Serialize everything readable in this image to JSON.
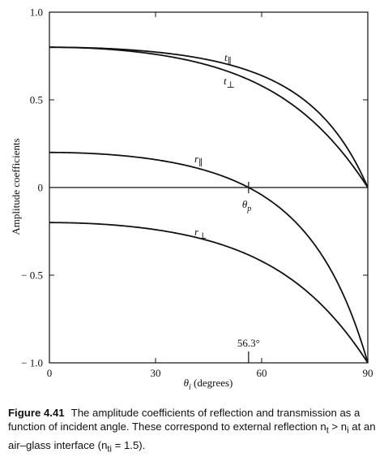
{
  "chart_data": {
    "type": "line",
    "xlabel": "θ",
    "xlabel_sub": "i",
    "xlabel_unit": " (degrees)",
    "ylabel": "Amplitude coefficients",
    "xlim": [
      0,
      90
    ],
    "ylim": [
      -1.0,
      1.0
    ],
    "xticks": [
      {
        "value": 0,
        "label": "0"
      },
      {
        "value": 30,
        "label": "30"
      },
      {
        "value": 60,
        "label": "60"
      },
      {
        "value": 90,
        "label": "90"
      }
    ],
    "yticks": [
      {
        "value": 1.0,
        "label": "1.0"
      },
      {
        "value": 0.5,
        "label": "0.5"
      },
      {
        "value": 0,
        "label": "0"
      },
      {
        "value": -0.5,
        "label": "− 0.5"
      },
      {
        "value": -1.0,
        "label": "− 1.0"
      }
    ],
    "grid": false,
    "n_incident": 1.0,
    "n_transmitted": 1.5,
    "series": [
      {
        "name": "t∥",
        "base": "t",
        "sub": "∥",
        "x": [
          0,
          15,
          30,
          45,
          56.3,
          60,
          70,
          80,
          85,
          90
        ],
        "values": [
          0.8,
          0.795,
          0.781,
          0.755,
          0.727,
          0.714,
          0.669,
          0.56,
          0.398,
          0.0
        ]
      },
      {
        "name": "t⊥",
        "base": "t",
        "sub": "⊥",
        "x": [
          0,
          15,
          30,
          45,
          56.3,
          60,
          70,
          80,
          85,
          90
        ],
        "values": [
          0.8,
          0.793,
          0.771,
          0.721,
          0.662,
          0.635,
          0.537,
          0.376,
          0.232,
          0.0
        ]
      },
      {
        "name": "r∥",
        "base": "r",
        "sub": "∥",
        "x": [
          0,
          15,
          30,
          45,
          56.3,
          60,
          70,
          80,
          85,
          90
        ],
        "values": [
          0.2,
          0.192,
          0.159,
          0.092,
          0.0,
          -0.042,
          -0.196,
          -0.441,
          -0.64,
          -1.0
        ]
      },
      {
        "name": "r⊥",
        "base": "r",
        "sub": "⊥",
        "x": [
          0,
          15,
          30,
          45,
          56.3,
          60,
          70,
          80,
          85,
          90
        ],
        "values": [
          -0.2,
          -0.207,
          -0.229,
          -0.279,
          -0.338,
          -0.365,
          -0.463,
          -0.624,
          -0.768,
          -1.0
        ]
      }
    ],
    "annotations": [
      {
        "kind": "brewster",
        "x": 56.3,
        "y": 0,
        "base": "θ",
        "sub": "p"
      },
      {
        "kind": "degree-marker",
        "x": 56.3,
        "y": -1.0,
        "label": "56.3°"
      }
    ]
  },
  "caption": {
    "figure_number": "Figure 4.41",
    "text": "The amplitude coefficients of reflection and transmission as a function of incident angle. These correspond to external reflection n",
    "text_sub_t": "t",
    "text_gt": " > n",
    "text_sub_i": "i",
    "text_tail": " at an air–glass interface (n",
    "text_sub_ti": "ti",
    "text_end": " = 1.5)."
  }
}
